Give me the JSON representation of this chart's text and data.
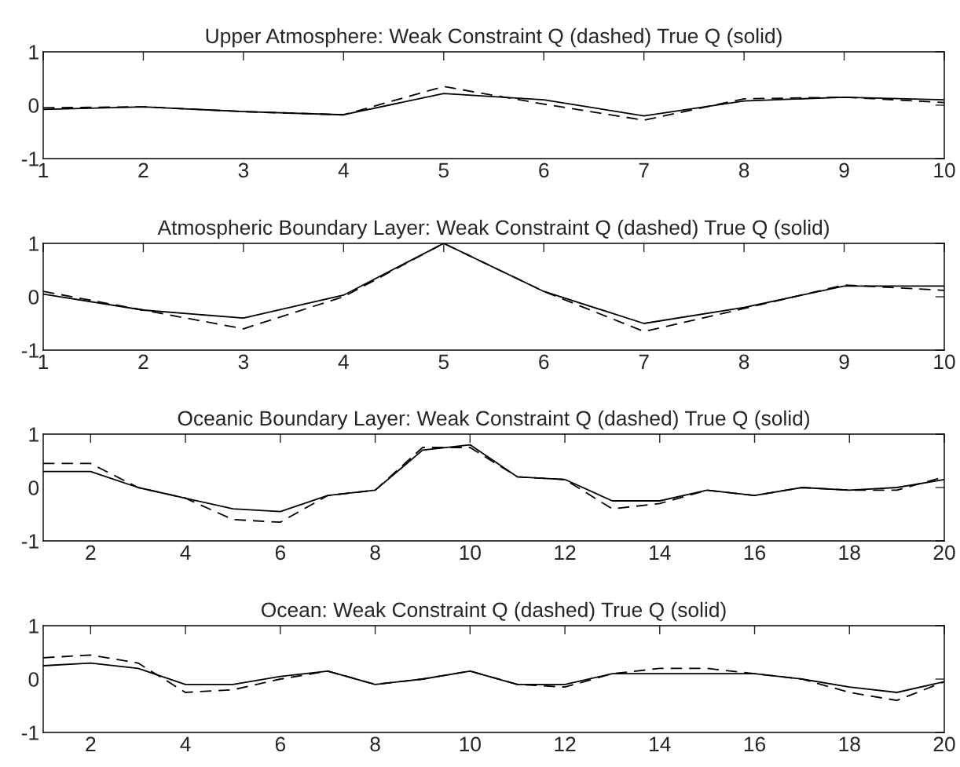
{
  "chart_data": [
    {
      "type": "line",
      "title": "Upper Atmosphere: Weak Constraint Q (dashed) True Q (solid)",
      "x": [
        1,
        2,
        3,
        4,
        5,
        6,
        7,
        8,
        9,
        10
      ],
      "xlim": [
        1,
        10
      ],
      "xticks": [
        1,
        2,
        3,
        4,
        5,
        6,
        7,
        8,
        9,
        10
      ],
      "ylim": [
        -1,
        1
      ],
      "yticks": [
        -1,
        0,
        1
      ],
      "grid": false,
      "legend": false,
      "series": [
        {
          "color": "#000000",
          "line_style": "dashed",
          "values": [
            -0.05,
            -0.03,
            -0.12,
            -0.18,
            0.35,
            0.02,
            -0.28,
            0.12,
            0.15,
            0.05
          ]
        },
        {
          "color": "#000000",
          "line_style": "solid",
          "values": [
            -0.08,
            -0.03,
            -0.12,
            -0.18,
            0.22,
            0.1,
            -0.2,
            0.08,
            0.15,
            0.1
          ]
        }
      ]
    },
    {
      "type": "line",
      "title": "Atmospheric Boundary Layer: Weak Constraint Q (dashed) True Q (solid)",
      "x": [
        1,
        2,
        3,
        4,
        5,
        6,
        7,
        8,
        9,
        10
      ],
      "xlim": [
        1,
        10
      ],
      "xticks": [
        1,
        2,
        3,
        4,
        5,
        6,
        7,
        8,
        9,
        10
      ],
      "ylim": [
        -1,
        1
      ],
      "yticks": [
        -1,
        0,
        1
      ],
      "grid": false,
      "legend": false,
      "series": [
        {
          "color": "#000000",
          "line_style": "dashed",
          "values": [
            0.1,
            -0.25,
            -0.6,
            0.0,
            1.0,
            0.1,
            -0.65,
            -0.22,
            0.22,
            0.12
          ]
        },
        {
          "color": "#000000",
          "line_style": "solid",
          "values": [
            0.05,
            -0.25,
            -0.4,
            0.03,
            1.0,
            0.1,
            -0.5,
            -0.2,
            0.2,
            0.2
          ]
        }
      ]
    },
    {
      "type": "line",
      "title": "Oceanic Boundary Layer: Weak Constraint Q (dashed) True Q (solid)",
      "x": [
        1,
        2,
        3,
        4,
        5,
        6,
        7,
        8,
        9,
        10,
        11,
        12,
        13,
        14,
        15,
        16,
        17,
        18,
        19,
        20
      ],
      "xlim": [
        1,
        20
      ],
      "xticks": [
        2,
        4,
        6,
        8,
        10,
        12,
        14,
        16,
        18,
        20
      ],
      "ylim": [
        -1,
        1
      ],
      "yticks": [
        -1,
        0,
        1
      ],
      "grid": false,
      "legend": false,
      "series": [
        {
          "color": "#000000",
          "line_style": "dashed",
          "values": [
            0.45,
            0.45,
            0.0,
            -0.2,
            -0.6,
            -0.65,
            -0.15,
            -0.05,
            0.75,
            0.75,
            0.2,
            0.15,
            -0.4,
            -0.3,
            -0.05,
            -0.15,
            0.0,
            -0.05,
            -0.05,
            0.2
          ]
        },
        {
          "color": "#000000",
          "line_style": "solid",
          "values": [
            0.3,
            0.3,
            0.0,
            -0.2,
            -0.4,
            -0.45,
            -0.15,
            -0.05,
            0.7,
            0.8,
            0.2,
            0.15,
            -0.25,
            -0.25,
            -0.05,
            -0.15,
            0.0,
            -0.05,
            0.0,
            0.15
          ]
        }
      ]
    },
    {
      "type": "line",
      "title": "Ocean: Weak Constraint Q (dashed) True Q (solid)",
      "x": [
        1,
        2,
        3,
        4,
        5,
        6,
        7,
        8,
        9,
        10,
        11,
        12,
        13,
        14,
        15,
        16,
        17,
        18,
        19,
        20
      ],
      "xlim": [
        1,
        20
      ],
      "xticks": [
        2,
        4,
        6,
        8,
        10,
        12,
        14,
        16,
        18,
        20
      ],
      "ylim": [
        -1,
        1
      ],
      "yticks": [
        -1,
        0,
        1
      ],
      "grid": false,
      "legend": false,
      "series": [
        {
          "color": "#000000",
          "line_style": "dashed",
          "values": [
            0.4,
            0.45,
            0.3,
            -0.25,
            -0.2,
            0.0,
            0.15,
            -0.1,
            0.0,
            0.15,
            -0.1,
            -0.15,
            0.1,
            0.2,
            0.2,
            0.1,
            0.0,
            -0.25,
            -0.4,
            -0.05
          ]
        },
        {
          "color": "#000000",
          "line_style": "solid",
          "values": [
            0.25,
            0.3,
            0.2,
            -0.1,
            -0.1,
            0.05,
            0.15,
            -0.1,
            0.0,
            0.15,
            -0.1,
            -0.1,
            0.1,
            0.1,
            0.1,
            0.1,
            0.0,
            -0.15,
            -0.25,
            -0.05
          ]
        }
      ]
    }
  ]
}
